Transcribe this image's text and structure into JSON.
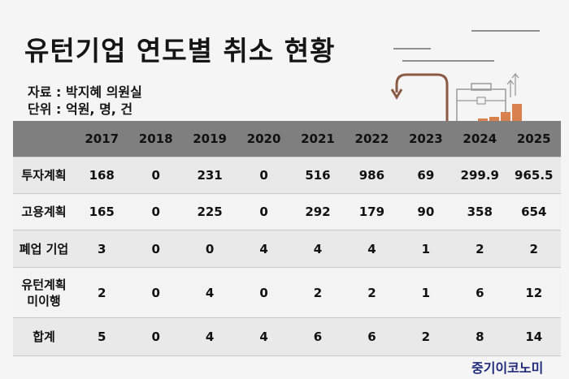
{
  "title": "유턴기업 연도별 취소 현황",
  "source": [
    "자료 : 박지혜 의원실",
    "단위 : 억원, 명, 건"
  ],
  "table": {
    "header": [
      "",
      "2017",
      "2018",
      "2019",
      "2020",
      "2021",
      "2022",
      "2023",
      "2024",
      "2025"
    ],
    "rows": [
      {
        "label": "투자계획",
        "values": [
          "168",
          "0",
          "231",
          "0",
          "516",
          "986",
          "69",
          "299.9",
          "965.5"
        ]
      },
      {
        "label": "고용계획",
        "values": [
          "165",
          "0",
          "225",
          "0",
          "292",
          "179",
          "90",
          "358",
          "654"
        ]
      },
      {
        "label": "폐업 기업",
        "values": [
          "3",
          "0",
          "0",
          "4",
          "4",
          "4",
          "1",
          "2",
          "2"
        ]
      },
      {
        "label": "유턴계획\n미이행",
        "values": [
          "2",
          "0",
          "4",
          "0",
          "2",
          "2",
          "1",
          "6",
          "12"
        ]
      },
      {
        "label": "합계",
        "values": [
          "5",
          "0",
          "4",
          "4",
          "6",
          "6",
          "2",
          "8",
          "14"
        ]
      }
    ]
  },
  "brand": "중기이코노미",
  "colors": {
    "header_bg": "#7f7f7f",
    "accent_brown": "#8a5a44",
    "accent_orange": "#d9824f",
    "brand": "#1f2a7a"
  },
  "icons": [
    "return-arrow-icon",
    "briefcase-icon",
    "growth-arrows-icon",
    "coins-icon"
  ]
}
